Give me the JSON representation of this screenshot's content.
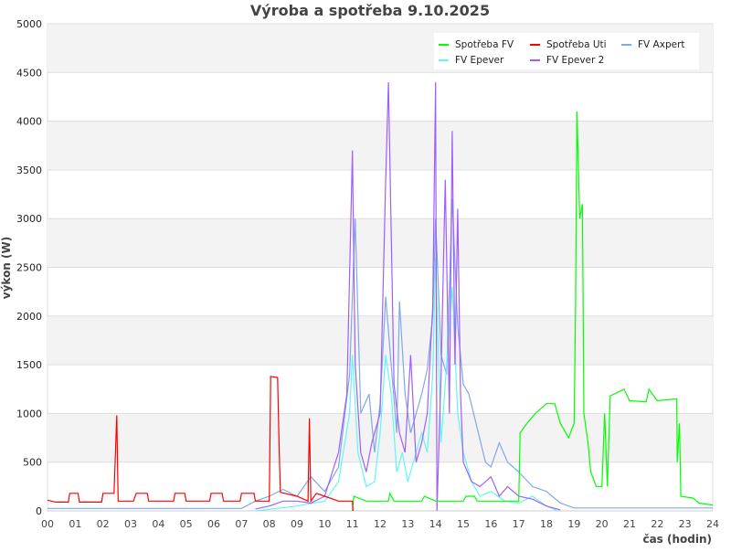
{
  "chart_data": {
    "type": "line",
    "title": "Výroba a spotřeba 9.10.2025",
    "xlabel": "čas (hodin)",
    "ylabel": "výkon (W)",
    "xlim": [
      0,
      24
    ],
    "ylim": [
      0,
      5000
    ],
    "x_ticks": [
      "00",
      "01",
      "02",
      "03",
      "04",
      "05",
      "06",
      "07",
      "08",
      "09",
      "10",
      "11",
      "12",
      "13",
      "14",
      "15",
      "16",
      "17",
      "18",
      "19",
      "20",
      "21",
      "22",
      "23",
      "24"
    ],
    "y_ticks": [
      0,
      500,
      1000,
      1500,
      2000,
      2500,
      3000,
      3500,
      4000,
      4500,
      5000
    ],
    "grid": true,
    "banded_background": true,
    "legend_placement": "top-right",
    "series": [
      {
        "name": "FV Axpert",
        "color": "#80a8e8",
        "points": [
          [
            0,
            25
          ],
          [
            7,
            25
          ],
          [
            7.5,
            100
          ],
          [
            8,
            150
          ],
          [
            8.5,
            220
          ],
          [
            9,
            150
          ],
          [
            9.5,
            350
          ],
          [
            10,
            200
          ],
          [
            10.5,
            450
          ],
          [
            10.9,
            1400
          ],
          [
            11.1,
            3000
          ],
          [
            11.3,
            1000
          ],
          [
            11.6,
            1200
          ],
          [
            11.8,
            600
          ],
          [
            12,
            1100
          ],
          [
            12.2,
            2200
          ],
          [
            12.4,
            1500
          ],
          [
            12.6,
            800
          ],
          [
            12.7,
            2150
          ],
          [
            12.9,
            1200
          ],
          [
            13.1,
            800
          ],
          [
            13.3,
            1000
          ],
          [
            13.5,
            1200
          ],
          [
            13.7,
            1450
          ],
          [
            13.9,
            2000
          ],
          [
            14.0,
            3000
          ],
          [
            14.2,
            1600
          ],
          [
            14.4,
            1400
          ],
          [
            14.6,
            3200
          ],
          [
            14.8,
            1900
          ],
          [
            15,
            1300
          ],
          [
            15.2,
            1200
          ],
          [
            15.5,
            850
          ],
          [
            15.8,
            500
          ],
          [
            16,
            450
          ],
          [
            16.3,
            700
          ],
          [
            16.6,
            500
          ],
          [
            17,
            400
          ],
          [
            17.5,
            250
          ],
          [
            18,
            200
          ],
          [
            18.5,
            80
          ],
          [
            19,
            30
          ],
          [
            24,
            30
          ]
        ]
      },
      {
        "name": "FV Epever",
        "color": "#60f8f0",
        "points": [
          [
            7.5,
            0
          ],
          [
            9,
            50
          ],
          [
            10,
            100
          ],
          [
            10.5,
            300
          ],
          [
            10.9,
            1000
          ],
          [
            11.0,
            1600
          ],
          [
            11.2,
            600
          ],
          [
            11.5,
            250
          ],
          [
            11.8,
            300
          ],
          [
            12.0,
            800
          ],
          [
            12.2,
            1600
          ],
          [
            12.4,
            1200
          ],
          [
            12.6,
            400
          ],
          [
            12.8,
            600
          ],
          [
            13,
            300
          ],
          [
            13.3,
            600
          ],
          [
            13.5,
            800
          ],
          [
            13.7,
            600
          ],
          [
            13.9,
            1400
          ],
          [
            14.0,
            2600
          ],
          [
            14.2,
            700
          ],
          [
            14.4,
            1500
          ],
          [
            14.6,
            2300
          ],
          [
            14.8,
            1000
          ],
          [
            15,
            600
          ],
          [
            15.3,
            300
          ],
          [
            15.6,
            150
          ],
          [
            16,
            200
          ],
          [
            16.5,
            100
          ],
          [
            17,
            80
          ],
          [
            17.5,
            150
          ],
          [
            18,
            50
          ],
          [
            18.4,
            0
          ]
        ]
      },
      {
        "name": "FV Epever 2",
        "color": "#9f5ff8",
        "points": [
          [
            7.5,
            20
          ],
          [
            8,
            50
          ],
          [
            8.5,
            100
          ],
          [
            9,
            100
          ],
          [
            9.5,
            80
          ],
          [
            10,
            150
          ],
          [
            10.5,
            600
          ],
          [
            10.8,
            1200
          ],
          [
            11.0,
            3700
          ],
          [
            11.1,
            1500
          ],
          [
            11.3,
            600
          ],
          [
            11.5,
            400
          ],
          [
            11.7,
            700
          ],
          [
            12,
            1000
          ],
          [
            12.2,
            3400
          ],
          [
            12.3,
            4400
          ],
          [
            12.5,
            1300
          ],
          [
            12.7,
            800
          ],
          [
            12.9,
            600
          ],
          [
            13.1,
            1600
          ],
          [
            13.3,
            500
          ],
          [
            13.5,
            700
          ],
          [
            13.7,
            1000
          ],
          [
            13.9,
            2100
          ],
          [
            14.0,
            4400
          ],
          [
            14.05,
            0
          ],
          [
            14.2,
            1400
          ],
          [
            14.35,
            3400
          ],
          [
            14.5,
            1000
          ],
          [
            14.6,
            3900
          ],
          [
            14.7,
            1500
          ],
          [
            14.8,
            3100
          ],
          [
            14.9,
            1200
          ],
          [
            15,
            500
          ],
          [
            15.3,
            300
          ],
          [
            15.6,
            250
          ],
          [
            16,
            350
          ],
          [
            16.3,
            150
          ],
          [
            16.6,
            250
          ],
          [
            17,
            150
          ],
          [
            17.5,
            120
          ],
          [
            18,
            50
          ],
          [
            18.5,
            10
          ]
        ]
      },
      {
        "name": "Spotřeba FV",
        "color": "#00ff00",
        "points": [
          [
            11.0,
            0
          ],
          [
            11.05,
            150
          ],
          [
            11.5,
            100
          ],
          [
            12.3,
            100
          ],
          [
            12.35,
            180
          ],
          [
            12.5,
            100
          ],
          [
            13.5,
            100
          ],
          [
            13.6,
            150
          ],
          [
            14,
            100
          ],
          [
            15,
            100
          ],
          [
            15.1,
            150
          ],
          [
            15.4,
            150
          ],
          [
            15.5,
            100
          ],
          [
            17,
            100
          ],
          [
            17.05,
            800
          ],
          [
            17.3,
            900
          ],
          [
            17.6,
            1000
          ],
          [
            18,
            1100
          ],
          [
            18.3,
            1100
          ],
          [
            18.5,
            900
          ],
          [
            18.8,
            750
          ],
          [
            19,
            900
          ],
          [
            19.05,
            2100
          ],
          [
            19.1,
            4100
          ],
          [
            19.2,
            3000
          ],
          [
            19.3,
            3150
          ],
          [
            19.35,
            1000
          ],
          [
            19.5,
            700
          ],
          [
            19.6,
            400
          ],
          [
            19.8,
            250
          ],
          [
            20,
            250
          ],
          [
            20.1,
            1000
          ],
          [
            20.2,
            250
          ],
          [
            20.3,
            1180
          ],
          [
            20.8,
            1250
          ],
          [
            21,
            1130
          ],
          [
            21.6,
            1120
          ],
          [
            21.7,
            1250
          ],
          [
            22,
            1130
          ],
          [
            22.7,
            1150
          ],
          [
            22.72,
            500
          ],
          [
            22.8,
            900
          ],
          [
            22.85,
            150
          ],
          [
            23.3,
            130
          ],
          [
            23.5,
            80
          ],
          [
            24,
            60
          ]
        ]
      },
      {
        "name": "Spotřeba Uti",
        "color": "#ff0000",
        "points": [
          [
            0,
            110
          ],
          [
            0.3,
            90
          ],
          [
            0.75,
            90
          ],
          [
            0.8,
            180
          ],
          [
            1.1,
            180
          ],
          [
            1.15,
            90
          ],
          [
            1.95,
            90
          ],
          [
            2.0,
            180
          ],
          [
            2.4,
            180
          ],
          [
            2.5,
            980
          ],
          [
            2.55,
            100
          ],
          [
            3.1,
            100
          ],
          [
            3.2,
            180
          ],
          [
            3.6,
            180
          ],
          [
            3.65,
            100
          ],
          [
            4.55,
            100
          ],
          [
            4.6,
            180
          ],
          [
            4.95,
            180
          ],
          [
            5.0,
            100
          ],
          [
            5.85,
            100
          ],
          [
            5.9,
            180
          ],
          [
            6.3,
            180
          ],
          [
            6.35,
            100
          ],
          [
            6.95,
            100
          ],
          [
            7.0,
            180
          ],
          [
            7.45,
            180
          ],
          [
            7.5,
            100
          ],
          [
            8.0,
            100
          ],
          [
            8.05,
            1380
          ],
          [
            8.3,
            1370
          ],
          [
            8.35,
            730
          ],
          [
            8.4,
            190
          ],
          [
            9.0,
            150
          ],
          [
            9.4,
            100
          ],
          [
            9.45,
            950
          ],
          [
            9.5,
            100
          ],
          [
            9.7,
            180
          ],
          [
            10,
            150
          ],
          [
            10.5,
            100
          ],
          [
            11.0,
            100
          ],
          [
            11.02,
            0
          ]
        ]
      }
    ]
  }
}
